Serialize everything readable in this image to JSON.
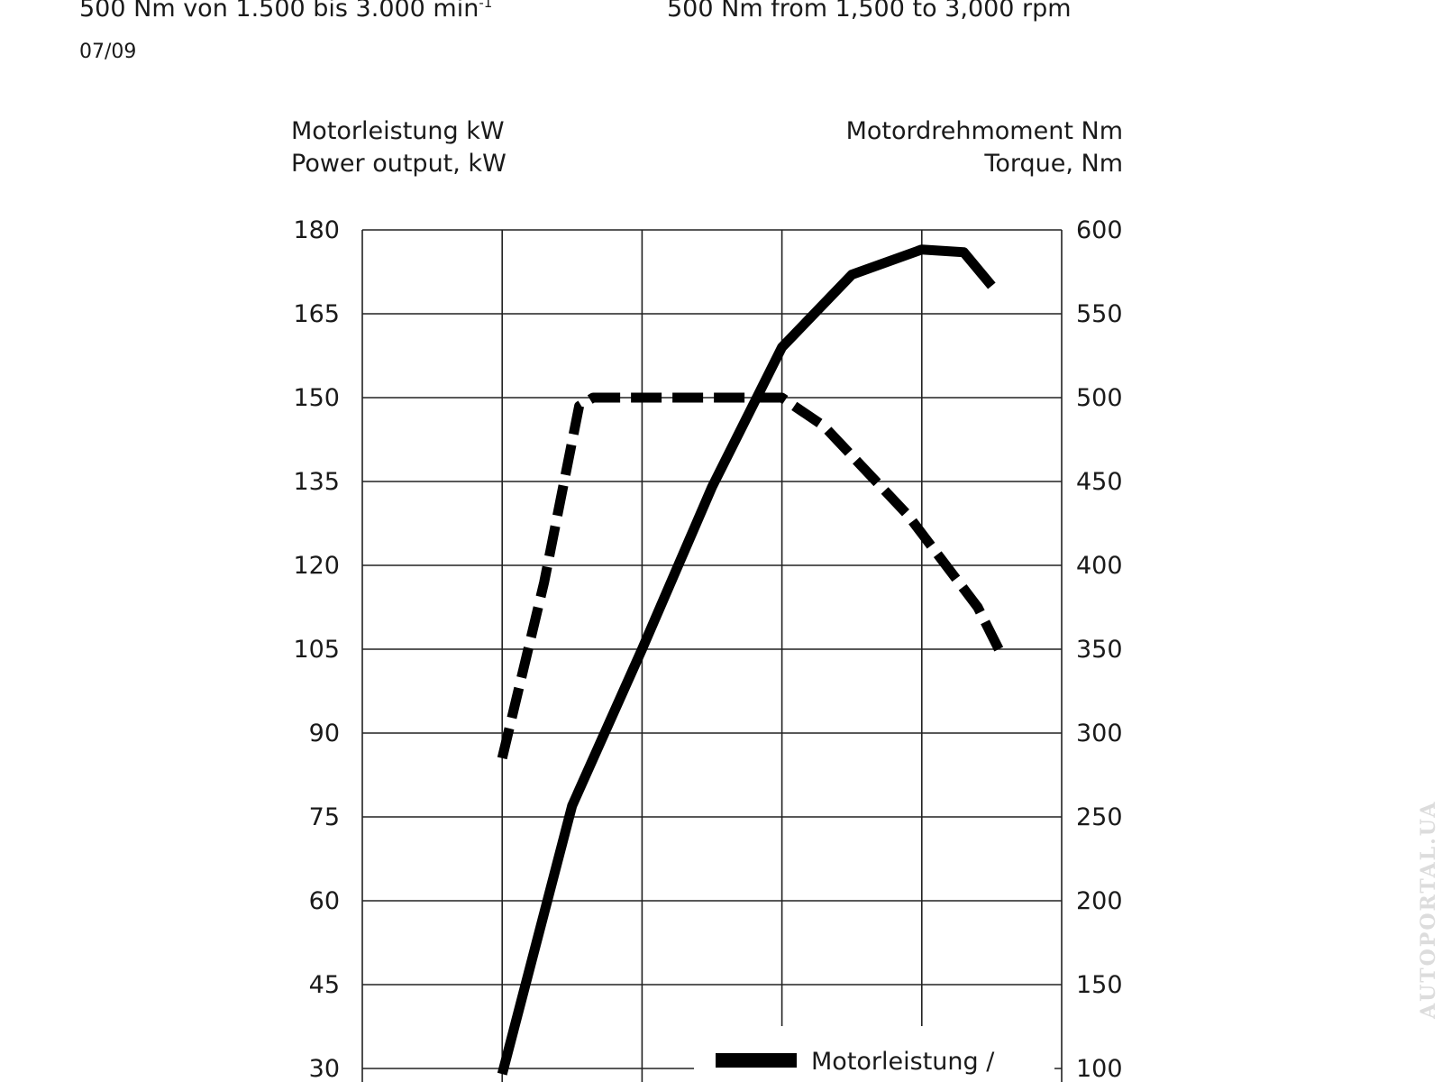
{
  "header": {
    "de_text": "500 Nm von 1.500 bis 3.000 min",
    "de_sup": "-1",
    "en_text": "500 Nm from 1,500 to 3,000 rpm",
    "date": "07/09"
  },
  "watermark": "AUTOPORTAL.UA",
  "chart_data": {
    "type": "line",
    "left_axis_title": [
      "Motorleistung kW",
      "Power output, kW"
    ],
    "right_axis_title": [
      "Motordrehmoment Nm",
      "Torque, Nm"
    ],
    "left_ticks": [
      "180",
      "165",
      "150",
      "135",
      "120",
      "105",
      "90",
      "75",
      "60",
      "45",
      "30"
    ],
    "right_ticks": [
      "600",
      "550",
      "500",
      "450",
      "400",
      "350",
      "300",
      "250",
      "200",
      "150",
      "100"
    ],
    "left_ylim": [
      30,
      180
    ],
    "right_ylim": [
      100,
      600
    ],
    "x_gridlines": 5,
    "grid": true,
    "series": [
      {
        "name": "Motorleistung / ",
        "axis": "left",
        "style": "solid",
        "color": "#000000",
        "points": [
          [
            1.0,
            29
          ],
          [
            1.5,
            77
          ],
          [
            2.0,
            105
          ],
          [
            2.5,
            134
          ],
          [
            3.0,
            159
          ],
          [
            3.5,
            172
          ],
          [
            4.0,
            176.5
          ],
          [
            4.3,
            176
          ],
          [
            4.5,
            170
          ]
        ]
      },
      {
        "axis": "right",
        "style": "dashed",
        "color": "#000000",
        "points": [
          [
            1.0,
            285
          ],
          [
            1.3,
            390
          ],
          [
            1.55,
            495
          ],
          [
            1.65,
            500
          ],
          [
            3.0,
            500
          ],
          [
            3.3,
            483
          ],
          [
            3.9,
            430
          ],
          [
            4.4,
            375
          ],
          [
            4.55,
            350
          ]
        ]
      }
    ]
  }
}
